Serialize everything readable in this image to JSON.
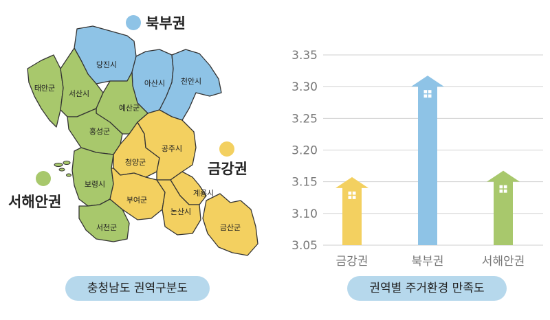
{
  "map": {
    "caption": "충청남도 권역구분도",
    "regions": {
      "bukbu": {
        "label": "북부권",
        "color": "#8ec3e6"
      },
      "geumgang": {
        "label": "금강권",
        "color": "#f3d060"
      },
      "seohaean": {
        "label": "서해안권",
        "color": "#a8c86c"
      }
    },
    "districts": {
      "dangjin": "당진시",
      "asan": "아산시",
      "cheonan": "천안시",
      "taean": "태안군",
      "seosan": "서산시",
      "yesan": "예산군",
      "hongseong": "홍성군",
      "boryeong": "보령시",
      "seocheon": "서천군",
      "cheongyang": "청양군",
      "gongju": "공주시",
      "buyeo": "부여군",
      "gyeryong": "계룡시",
      "nonsan": "논산시",
      "geumsan": "금산군"
    }
  },
  "chart": {
    "caption": "권역별 주거환경 만족도"
  },
  "chart_data": {
    "type": "bar",
    "title": "권역별 주거환경 만족도",
    "categories": [
      "금강권",
      "북부권",
      "서해안권"
    ],
    "values": [
      3.14,
      3.3,
      3.15
    ],
    "colors": [
      "#f3d060",
      "#8ec3e6",
      "#a8c86c"
    ],
    "yticks": [
      "3.35",
      "3.30",
      "3.25",
      "3.20",
      "3.15",
      "3.10",
      "3.05"
    ],
    "ylim": [
      3.05,
      3.35
    ],
    "xlabel": "",
    "ylabel": "",
    "grid": true
  }
}
